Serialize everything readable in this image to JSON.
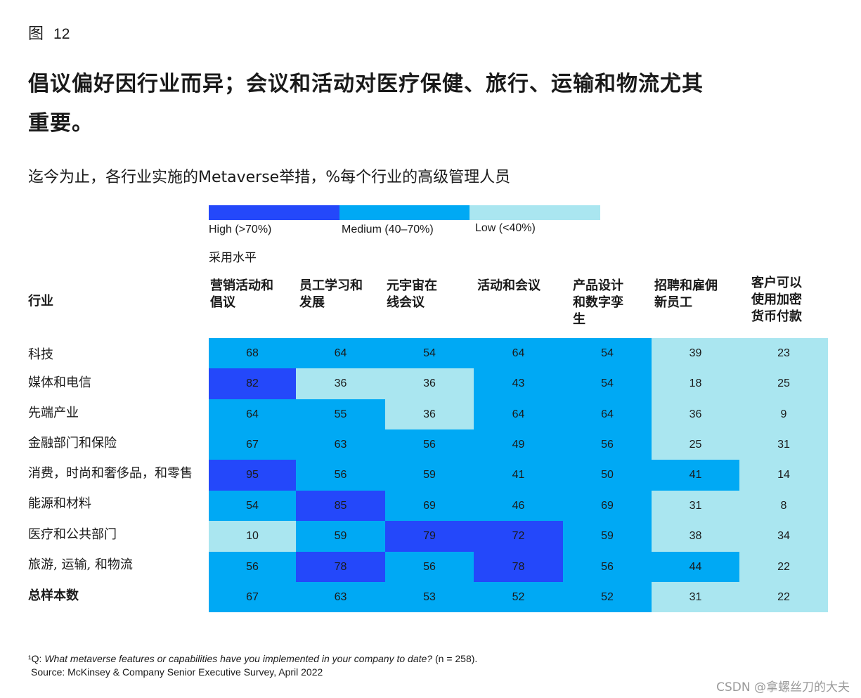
{
  "figure_label": "图",
  "figure_number": "12",
  "title_line1": "倡议偏好因行业而异；会议和活动对医疗保健、旅行、运输和物流尤其",
  "title_line2": "重要。",
  "subtitle": "迄今为止，各行业实施的Metaverse举措，%每个行业的高级管理人员",
  "legend": {
    "high_label": "High (>70%)",
    "medium_label": "Medium (40–70%)",
    "low_label": "Low (<40%)",
    "title": "采用水平",
    "colors": {
      "high": "#2448fa",
      "medium": "#00a9f4",
      "low": "#aae6f0"
    }
  },
  "row_header": "行业",
  "footnote_prefix": "¹Q: ",
  "footnote_question": "What metaverse features or capabilities have you implemented in your company to date?",
  "footnote_n": " (n = 258).",
  "source": "Source: McKinsey & Company Senior Executive Survey, April 2022",
  "watermark": "CSDN @拿螺丝刀的大夫",
  "chart_data": {
    "type": "heatmap",
    "title": "迄今为止，各行业实施的Metaverse举措，%每个行业的高级管理人员",
    "columns": [
      [
        "营销活动和",
        "倡议"
      ],
      [
        "员工学习和",
        "发展"
      ],
      [
        "元宇宙在",
        "线会议"
      ],
      [
        "活动和会议"
      ],
      [
        "产品设计",
        "和数字孪",
        "生"
      ],
      [
        "招聘和雇佣",
        "新员工"
      ],
      [
        "客户可以",
        "使用加密",
        "货币付款"
      ]
    ],
    "rows": [
      "科技",
      "媒体和电信",
      "先端产业",
      "金融部门和保险",
      "消费，时尚和奢侈品，和零售",
      "能源和材料",
      "医疗和公共部门",
      "旅游, 运输, 和物流",
      "总样本数"
    ],
    "bold_rows": [
      8
    ],
    "values": [
      [
        68,
        64,
        54,
        64,
        54,
        39,
        23
      ],
      [
        82,
        36,
        36,
        43,
        54,
        18,
        25
      ],
      [
        64,
        55,
        36,
        64,
        64,
        36,
        9
      ],
      [
        67,
        63,
        56,
        49,
        56,
        25,
        31
      ],
      [
        95,
        56,
        59,
        41,
        50,
        41,
        14
      ],
      [
        54,
        85,
        69,
        46,
        69,
        31,
        8
      ],
      [
        10,
        59,
        79,
        72,
        59,
        38,
        34
      ],
      [
        56,
        78,
        56,
        78,
        56,
        44,
        22
      ],
      [
        67,
        63,
        53,
        52,
        52,
        31,
        22
      ]
    ],
    "levels": [
      [
        "medium",
        "medium",
        "medium",
        "medium",
        "medium",
        "low",
        "low"
      ],
      [
        "high",
        "low",
        "low",
        "medium",
        "medium",
        "low",
        "low"
      ],
      [
        "medium",
        "medium",
        "low",
        "medium",
        "medium",
        "low",
        "low"
      ],
      [
        "medium",
        "medium",
        "medium",
        "medium",
        "medium",
        "low",
        "low"
      ],
      [
        "high",
        "medium",
        "medium",
        "medium",
        "medium",
        "medium",
        "low"
      ],
      [
        "medium",
        "high",
        "medium",
        "medium",
        "medium",
        "low",
        "low"
      ],
      [
        "low",
        "medium",
        "high",
        "high",
        "medium",
        "low",
        "low"
      ],
      [
        "medium",
        "high",
        "medium",
        "high",
        "medium",
        "medium",
        "low"
      ],
      [
        "medium",
        "medium",
        "medium",
        "medium",
        "medium",
        "low",
        "low"
      ]
    ]
  }
}
